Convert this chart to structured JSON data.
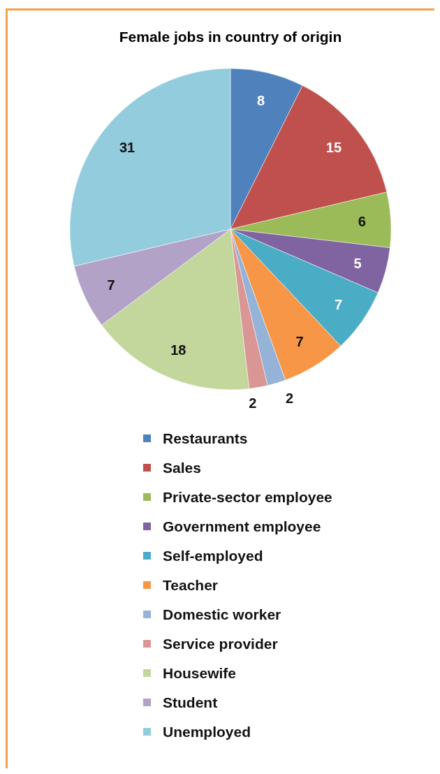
{
  "chart_data": {
    "type": "pie",
    "title": "Female jobs in country of origin",
    "categories": [
      "Restaurants",
      "Sales",
      "Private-sector employee",
      "Government employee",
      "Self-employed",
      "Teacher",
      "Domestic worker",
      "Service provider",
      "Housewife",
      "Student",
      "Unemployed"
    ],
    "values": [
      8,
      15,
      6,
      5,
      7,
      7,
      2,
      2,
      18,
      7,
      31
    ],
    "colors": [
      "#4f81bd",
      "#c0504d",
      "#9bbb59",
      "#8064a2",
      "#4bacc6",
      "#f79646",
      "#95b3d7",
      "#d99694",
      "#c3d69b",
      "#b2a2c7",
      "#93cddd"
    ],
    "data_labels": true,
    "legend": "bottom"
  }
}
